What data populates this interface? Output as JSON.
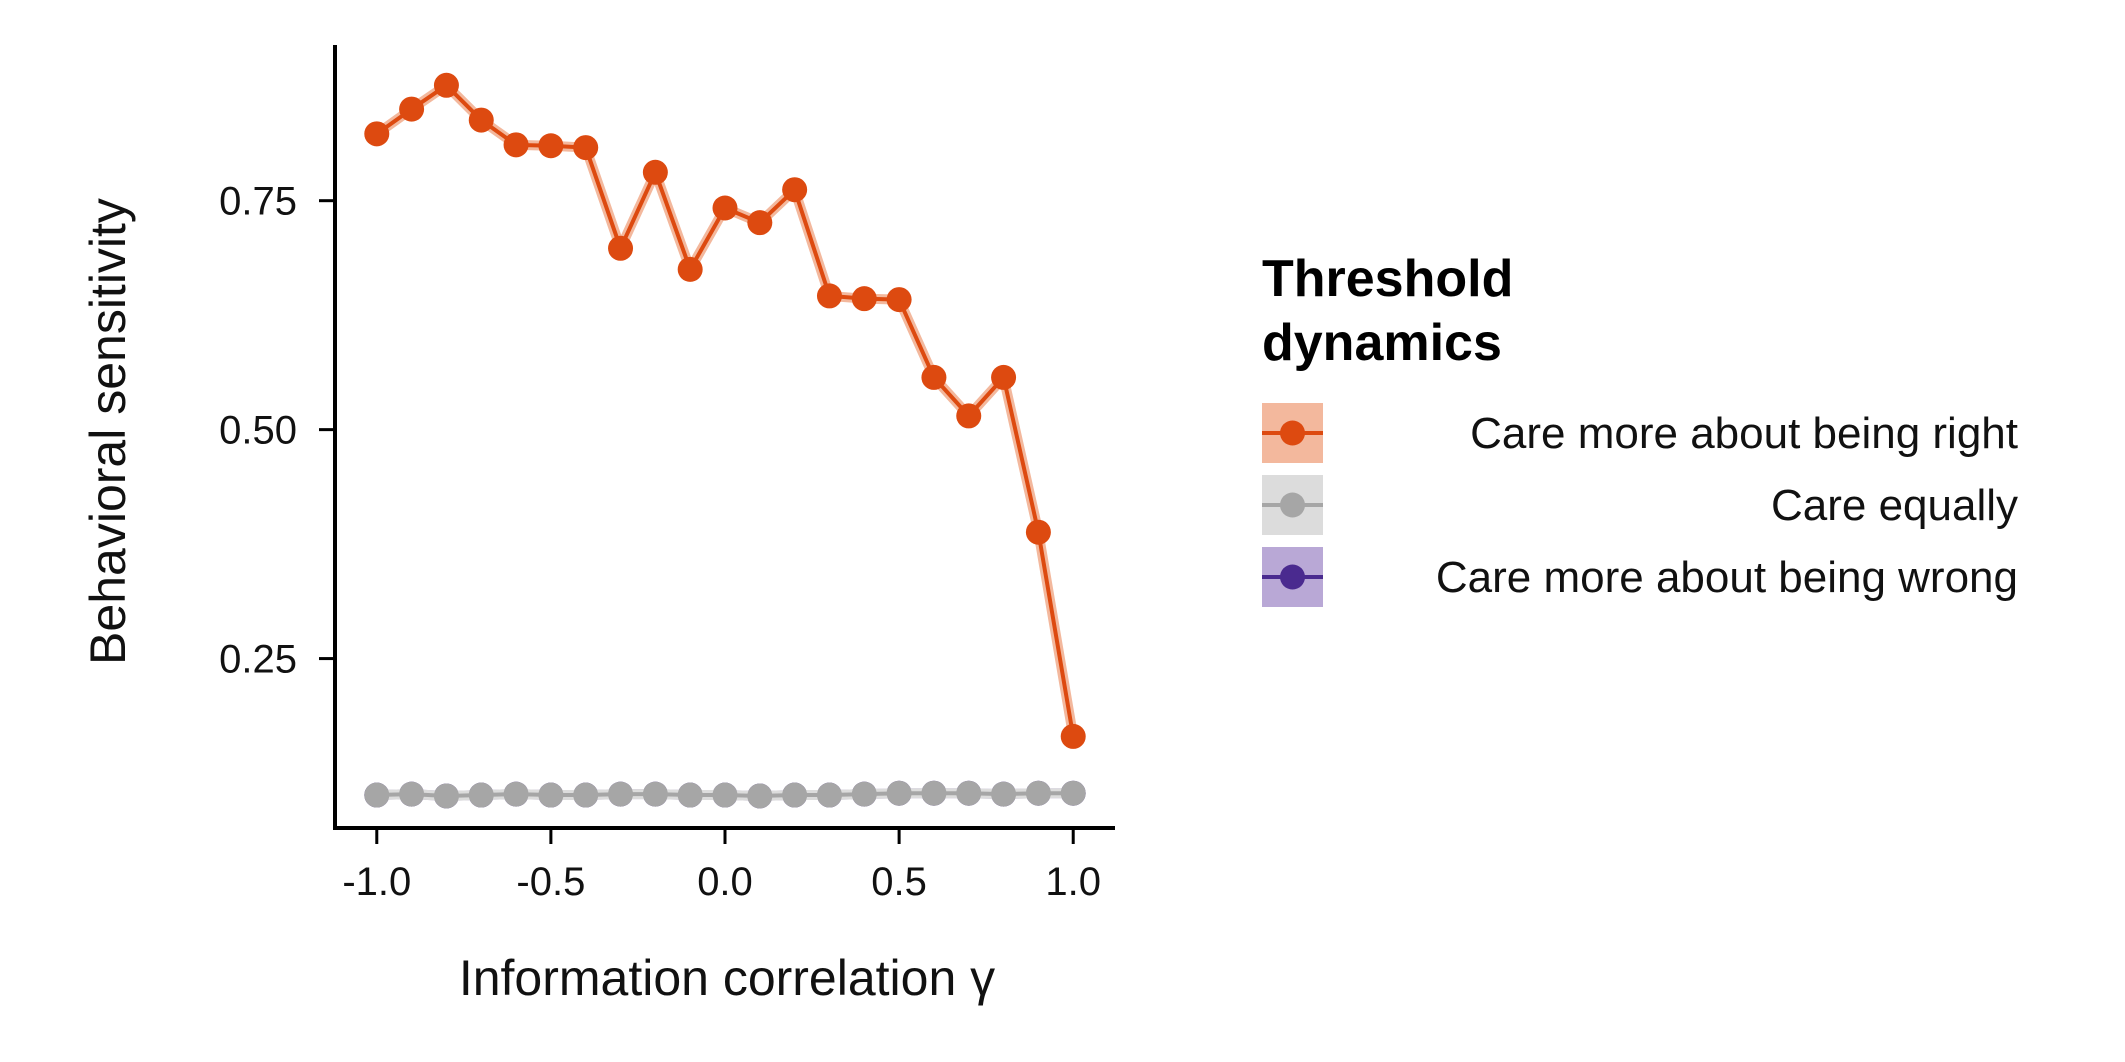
{
  "chart_data": {
    "type": "line",
    "xlabel": "Information correlation γ",
    "ylabel": "Behavioral sensitivity",
    "xlim": [
      -1.12,
      1.12
    ],
    "ylim": [
      0.065,
      0.92
    ],
    "xticks": [
      -1.0,
      -0.5,
      0.0,
      0.5,
      1.0
    ],
    "xtick_labels": [
      "-1.0",
      "-0.5",
      "0.0",
      "0.5",
      "1.0"
    ],
    "yticks": [
      0.25,
      0.5,
      0.75
    ],
    "ytick_labels": [
      "0.25",
      "0.50",
      "0.75"
    ],
    "grid": false,
    "legend": {
      "title_lines": [
        "Threshold",
        "dynamics"
      ],
      "placement": "right"
    },
    "x": [
      -1.0,
      -0.9,
      -0.8,
      -0.7,
      -0.6,
      -0.5,
      -0.4,
      -0.3,
      -0.2,
      -0.1,
      0.0,
      0.1,
      0.2,
      0.3,
      0.4,
      0.5,
      0.6,
      0.7,
      0.8,
      0.9,
      1.0
    ],
    "series": [
      {
        "name": "Care more about being wrong",
        "color": "#4a2a8f",
        "band_color": "#b9a8d6",
        "values": [
          0.101,
          0.102,
          0.1,
          0.101,
          0.102,
          0.101,
          0.101,
          0.102,
          0.102,
          0.101,
          0.101,
          0.1,
          0.101,
          0.101,
          0.102,
          0.103,
          0.103,
          0.103,
          0.102,
          0.103,
          0.103
        ]
      },
      {
        "name": "Care equally",
        "color": "#a6a6a6",
        "band_color": "#dcdcdc",
        "values": [
          0.101,
          0.102,
          0.1,
          0.101,
          0.102,
          0.101,
          0.101,
          0.102,
          0.102,
          0.101,
          0.101,
          0.1,
          0.101,
          0.101,
          0.102,
          0.103,
          0.103,
          0.103,
          0.102,
          0.103,
          0.103
        ]
      },
      {
        "name": "Care more about being right",
        "color": "#dd4a10",
        "band_color": "#f3b89d",
        "values": [
          0.823,
          0.85,
          0.876,
          0.838,
          0.811,
          0.81,
          0.808,
          0.698,
          0.781,
          0.675,
          0.742,
          0.726,
          0.762,
          0.646,
          0.643,
          0.642,
          0.557,
          0.515,
          0.557,
          0.388,
          0.165
        ]
      }
    ]
  }
}
